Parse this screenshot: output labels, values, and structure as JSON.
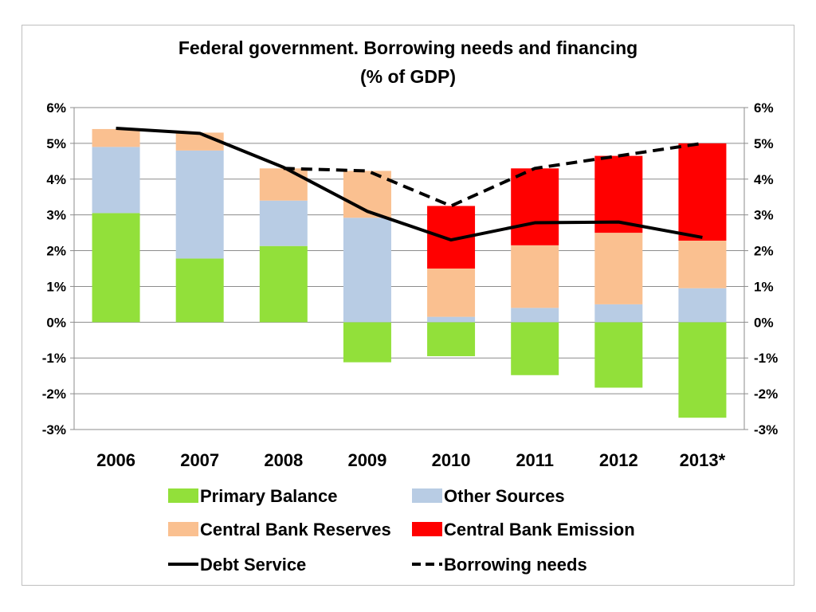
{
  "chart_data": {
    "type": "bar",
    "stacked": true,
    "title_line1": "Federal government. Borrowing needs and financing",
    "title_line2": "(% of GDP)",
    "categories": [
      "2006",
      "2007",
      "2008",
      "2009",
      "2010",
      "2011",
      "2012",
      "2013*"
    ],
    "ylim": [
      -3,
      6
    ],
    "y_ticks": [
      "-3%",
      "-2%",
      "-1%",
      "0%",
      "1%",
      "2%",
      "3%",
      "4%",
      "5%",
      "6%"
    ],
    "y_tick_values": [
      -3,
      -2,
      -1,
      0,
      1,
      2,
      3,
      4,
      5,
      6
    ],
    "grid": true,
    "series": [
      {
        "name": "Primary Balance",
        "color": "#92e03a",
        "values": [
          3.05,
          1.78,
          2.13,
          -1.12,
          -0.95,
          -1.48,
          -1.83,
          -2.67
        ]
      },
      {
        "name": "Other Sources",
        "color": "#b8cce4",
        "values": [
          1.85,
          3.02,
          1.27,
          2.92,
          0.15,
          0.4,
          0.5,
          0.95
        ]
      },
      {
        "name": "Central Bank Reserves",
        "color": "#fac090",
        "values": [
          0.5,
          0.5,
          0.9,
          1.31,
          1.35,
          1.75,
          2.0,
          1.33
        ]
      },
      {
        "name": "Central Bank Emission",
        "color": "#ff0000",
        "values": [
          0,
          0,
          0,
          0,
          1.75,
          2.15,
          2.15,
          2.72
        ]
      }
    ],
    "lines": [
      {
        "name": "Debt Service",
        "color": "#000000",
        "dashed": false,
        "values": [
          5.42,
          5.28,
          4.33,
          3.1,
          2.3,
          2.78,
          2.8,
          2.37
        ]
      },
      {
        "name": "Borrowing needs",
        "color": "#000000",
        "dashed": true,
        "values": [
          null,
          null,
          4.3,
          4.23,
          3.25,
          4.3,
          4.65,
          5.0
        ]
      }
    ],
    "legend_position": "bottom"
  }
}
